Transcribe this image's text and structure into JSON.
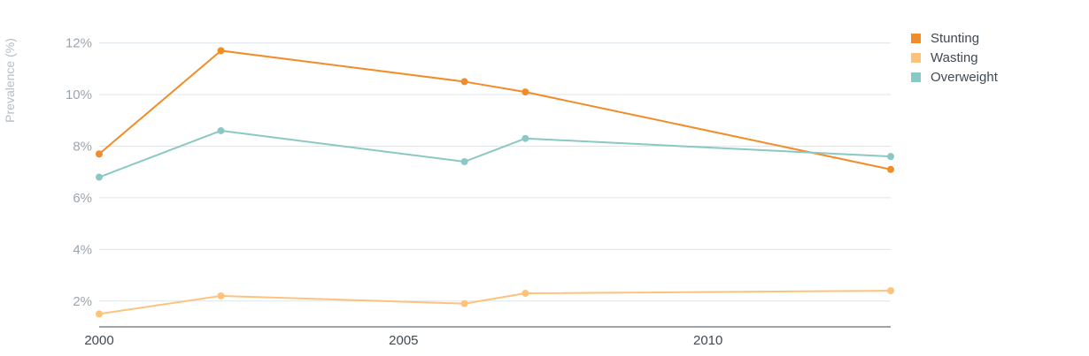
{
  "chart_data": {
    "type": "line",
    "ylabel": "Prevalence (%)",
    "xlabel": "",
    "xlim": [
      2000,
      2013
    ],
    "ylim": [
      1,
      12.5
    ],
    "x_ticks": [
      "2000",
      "2005",
      "2010"
    ],
    "y_ticks": [
      "2%",
      "4%",
      "6%",
      "8%",
      "10%",
      "12%"
    ],
    "grid": true,
    "legend_position": "top-right",
    "series": [
      {
        "name": "Stunting",
        "color": "#f28c28",
        "x": [
          2000,
          2002,
          2006,
          2007,
          2013
        ],
        "values": [
          7.7,
          11.7,
          10.5,
          10.1,
          7.1
        ]
      },
      {
        "name": "Wasting",
        "color": "#fdc27c",
        "x": [
          2000,
          2002,
          2006,
          2007,
          2013
        ],
        "values": [
          1.5,
          2.2,
          1.9,
          2.3,
          2.4
        ]
      },
      {
        "name": "Overweight",
        "color": "#8ac8c4",
        "x": [
          2000,
          2002,
          2006,
          2007,
          2013
        ],
        "values": [
          6.8,
          8.6,
          7.4,
          8.3,
          7.6
        ]
      }
    ]
  }
}
